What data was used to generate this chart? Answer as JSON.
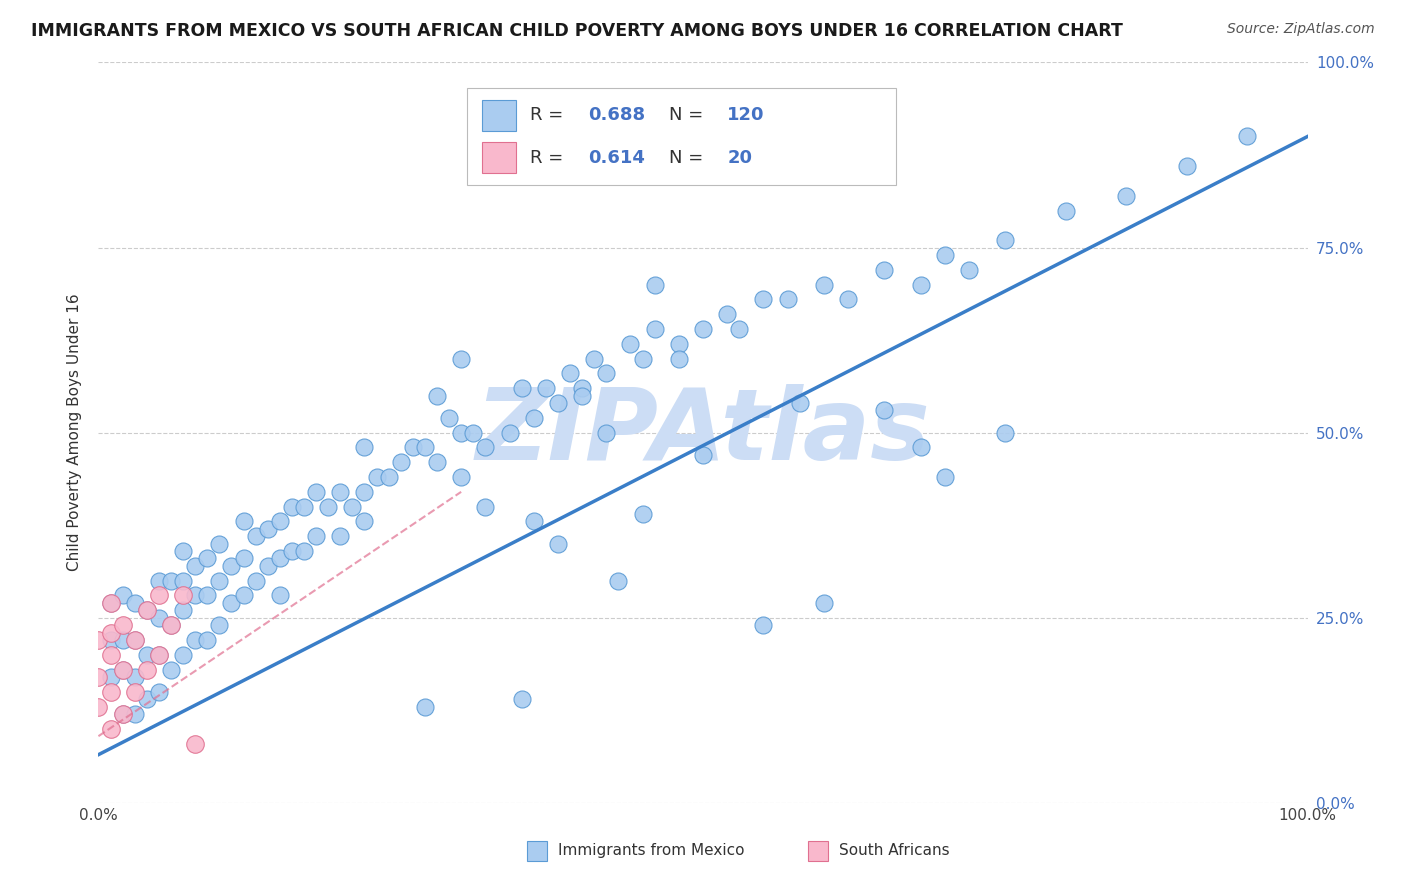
{
  "title": "IMMIGRANTS FROM MEXICO VS SOUTH AFRICAN CHILD POVERTY AMONG BOYS UNDER 16 CORRELATION CHART",
  "source": "Source: ZipAtlas.com",
  "ylabel": "Child Poverty Among Boys Under 16",
  "xlim": [
    0,
    1
  ],
  "ylim": [
    0,
    1
  ],
  "xtick_positions": [
    0.0,
    1.0
  ],
  "xtick_labels": [
    "0.0%",
    "100.0%"
  ],
  "ytick_vals": [
    0.0,
    0.25,
    0.5,
    0.75,
    1.0
  ],
  "ytick_labels": [
    "0.0%",
    "25.0%",
    "50.0%",
    "75.0%",
    "100.0%"
  ],
  "watermark": "ZIPAtlas",
  "legend_entries": [
    {
      "label": "Immigrants from Mexico",
      "R": "0.688",
      "N": "120",
      "face": "#aaccf0",
      "edge": "#5b9bd5"
    },
    {
      "label": "South Africans",
      "R": "0.614",
      "N": "20",
      "face": "#f9b8cc",
      "edge": "#e07090"
    }
  ],
  "blue_scatter_x": [
    0.01,
    0.01,
    0.01,
    0.02,
    0.02,
    0.02,
    0.02,
    0.03,
    0.03,
    0.03,
    0.03,
    0.04,
    0.04,
    0.04,
    0.05,
    0.05,
    0.05,
    0.05,
    0.06,
    0.06,
    0.06,
    0.07,
    0.07,
    0.07,
    0.07,
    0.08,
    0.08,
    0.08,
    0.09,
    0.09,
    0.09,
    0.1,
    0.1,
    0.1,
    0.11,
    0.11,
    0.12,
    0.12,
    0.12,
    0.13,
    0.13,
    0.14,
    0.14,
    0.15,
    0.15,
    0.15,
    0.16,
    0.16,
    0.17,
    0.17,
    0.18,
    0.18,
    0.19,
    0.2,
    0.2,
    0.21,
    0.22,
    0.22,
    0.23,
    0.24,
    0.25,
    0.26,
    0.27,
    0.28,
    0.29,
    0.3,
    0.3,
    0.31,
    0.32,
    0.34,
    0.35,
    0.36,
    0.37,
    0.38,
    0.39,
    0.4,
    0.41,
    0.42,
    0.44,
    0.45,
    0.46,
    0.48,
    0.5,
    0.52,
    0.55,
    0.57,
    0.58,
    0.6,
    0.62,
    0.65,
    0.68,
    0.7,
    0.72,
    0.75,
    0.8,
    0.85,
    0.9,
    0.95,
    0.38,
    0.28,
    0.3,
    0.35,
    0.42,
    0.32,
    0.27,
    0.22,
    0.5,
    0.55,
    0.4,
    0.45,
    0.6,
    0.48,
    0.65,
    0.7,
    0.68,
    0.75,
    0.46,
    0.53,
    0.36,
    0.43
  ],
  "blue_scatter_y": [
    0.17,
    0.22,
    0.27,
    0.12,
    0.18,
    0.22,
    0.28,
    0.12,
    0.17,
    0.22,
    0.27,
    0.14,
    0.2,
    0.26,
    0.15,
    0.2,
    0.25,
    0.3,
    0.18,
    0.24,
    0.3,
    0.2,
    0.26,
    0.3,
    0.34,
    0.22,
    0.28,
    0.32,
    0.22,
    0.28,
    0.33,
    0.24,
    0.3,
    0.35,
    0.27,
    0.32,
    0.28,
    0.33,
    0.38,
    0.3,
    0.36,
    0.32,
    0.37,
    0.28,
    0.33,
    0.38,
    0.34,
    0.4,
    0.34,
    0.4,
    0.36,
    0.42,
    0.4,
    0.36,
    0.42,
    0.4,
    0.42,
    0.48,
    0.44,
    0.44,
    0.46,
    0.48,
    0.48,
    0.46,
    0.52,
    0.44,
    0.5,
    0.5,
    0.48,
    0.5,
    0.56,
    0.52,
    0.56,
    0.54,
    0.58,
    0.56,
    0.6,
    0.58,
    0.62,
    0.6,
    0.64,
    0.62,
    0.64,
    0.66,
    0.68,
    0.68,
    0.54,
    0.7,
    0.68,
    0.72,
    0.7,
    0.74,
    0.72,
    0.76,
    0.8,
    0.82,
    0.86,
    0.9,
    0.35,
    0.55,
    0.6,
    0.14,
    0.5,
    0.4,
    0.13,
    0.38,
    0.47,
    0.24,
    0.55,
    0.39,
    0.27,
    0.6,
    0.53,
    0.44,
    0.48,
    0.5,
    0.7,
    0.64,
    0.38,
    0.3
  ],
  "pink_scatter_x": [
    0.0,
    0.0,
    0.0,
    0.01,
    0.01,
    0.01,
    0.01,
    0.01,
    0.02,
    0.02,
    0.02,
    0.03,
    0.03,
    0.04,
    0.04,
    0.05,
    0.05,
    0.06,
    0.07,
    0.08
  ],
  "pink_scatter_y": [
    0.13,
    0.17,
    0.22,
    0.1,
    0.15,
    0.2,
    0.23,
    0.27,
    0.12,
    0.18,
    0.24,
    0.15,
    0.22,
    0.18,
    0.26,
    0.2,
    0.28,
    0.24,
    0.28,
    0.08
  ],
  "blue_line": [
    0.0,
    0.065,
    1.0,
    0.9
  ],
  "pink_line": [
    0.0,
    0.09,
    0.3,
    0.42
  ],
  "blue_line_color": "#3a7ec8",
  "pink_line_color": "#e07090",
  "blue_scatter_face": "#aaccf0",
  "blue_scatter_edge": "#5b9bd5",
  "pink_scatter_face": "#f9b8cc",
  "pink_scatter_edge": "#e07090",
  "grid_color": "#cccccc",
  "title_color": "#1a1a1a",
  "source_color": "#555555",
  "watermark_color": "#ccddf5",
  "legend_value_color": "#4472c4",
  "right_tick_color": "#4472c4",
  "background_color": "#ffffff"
}
